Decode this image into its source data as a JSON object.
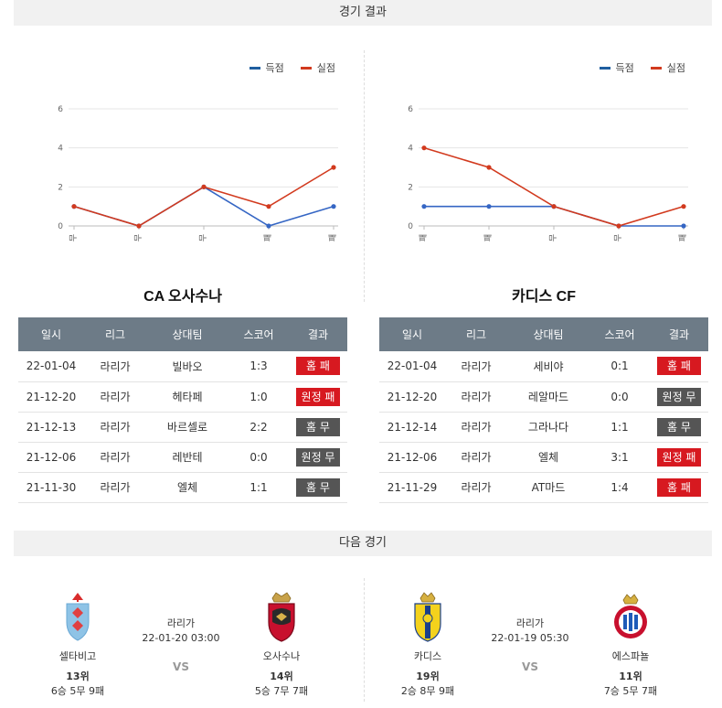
{
  "sections": {
    "results_title": "경기 결과",
    "next_title": "다음 경기"
  },
  "legend": {
    "scored": "득점",
    "conceded": "실점"
  },
  "colors": {
    "scored": "#3566c4",
    "conceded": "#d23a1e",
    "loss_badge": "#d71920",
    "draw_badge": "#555555",
    "header_bg": "#6d7b87"
  },
  "chart_data": [
    {
      "type": "line",
      "categories": [
        "무",
        "무",
        "무",
        "패",
        "패"
      ],
      "series": [
        {
          "name": "득점",
          "values": [
            1,
            0,
            2,
            0,
            1
          ]
        },
        {
          "name": "실점",
          "values": [
            1,
            0,
            2,
            1,
            3
          ]
        }
      ],
      "yticks": [
        "0",
        "2",
        "4",
        "6"
      ],
      "ylim": [
        0,
        6
      ],
      "grid": true,
      "legend": "top-right"
    },
    {
      "type": "line",
      "categories": [
        "패",
        "패",
        "무",
        "무",
        "패"
      ],
      "series": [
        {
          "name": "득점",
          "values": [
            1,
            1,
            1,
            0,
            0
          ]
        },
        {
          "name": "실점",
          "values": [
            4,
            3,
            1,
            0,
            1
          ]
        }
      ],
      "yticks": [
        "0",
        "2",
        "4",
        "6"
      ],
      "ylim": [
        0,
        6
      ],
      "grid": true,
      "legend": "top-right"
    }
  ],
  "teams": [
    {
      "title": "CA 오사수나",
      "headers": [
        "일시",
        "리그",
        "상대팀",
        "스코어",
        "결과"
      ],
      "rows": [
        {
          "date": "22-01-04",
          "league": "라리가",
          "opponent": "빌바오",
          "score": "1:3",
          "result": "홈 패",
          "kind": "loss"
        },
        {
          "date": "21-12-20",
          "league": "라리가",
          "opponent": "헤타페",
          "score": "1:0",
          "result": "원정 패",
          "kind": "loss"
        },
        {
          "date": "21-12-13",
          "league": "라리가",
          "opponent": "바르셀로",
          "score": "2:2",
          "result": "홈 무",
          "kind": "draw"
        },
        {
          "date": "21-12-06",
          "league": "라리가",
          "opponent": "레반테",
          "score": "0:0",
          "result": "원정 무",
          "kind": "draw"
        },
        {
          "date": "21-11-30",
          "league": "라리가",
          "opponent": "엘체",
          "score": "1:1",
          "result": "홈 무",
          "kind": "draw"
        }
      ]
    },
    {
      "title": "카디스 CF",
      "headers": [
        "일시",
        "리그",
        "상대팀",
        "스코어",
        "결과"
      ],
      "rows": [
        {
          "date": "22-01-04",
          "league": "라리가",
          "opponent": "세비야",
          "score": "0:1",
          "result": "홈 패",
          "kind": "loss"
        },
        {
          "date": "21-12-20",
          "league": "라리가",
          "opponent": "레알마드",
          "score": "0:0",
          "result": "원정 무",
          "kind": "draw"
        },
        {
          "date": "21-12-14",
          "league": "라리가",
          "opponent": "그라나다",
          "score": "1:1",
          "result": "홈 무",
          "kind": "draw"
        },
        {
          "date": "21-12-06",
          "league": "라리가",
          "opponent": "엘체",
          "score": "3:1",
          "result": "원정 패",
          "kind": "loss"
        },
        {
          "date": "21-11-29",
          "league": "라리가",
          "opponent": "AT마드",
          "score": "1:4",
          "result": "홈 패",
          "kind": "loss"
        }
      ]
    }
  ],
  "next_matches": [
    {
      "league": "라리가",
      "datetime": "22-01-20 03:00",
      "vs": "VS",
      "home": {
        "name": "셀타비고",
        "rank": "13위",
        "record": "6승 5무 9패",
        "logo": "celta-logo"
      },
      "away": {
        "name": "오사수나",
        "rank": "14위",
        "record": "5승 7무 7패",
        "logo": "osasuna-logo"
      }
    },
    {
      "league": "라리가",
      "datetime": "22-01-19 05:30",
      "vs": "VS",
      "home": {
        "name": "카디스",
        "rank": "19위",
        "record": "2승 8무 9패",
        "logo": "cadiz-logo"
      },
      "away": {
        "name": "에스파뇰",
        "rank": "11위",
        "record": "7승 5무 7패",
        "logo": "espanyol-logo"
      }
    }
  ]
}
